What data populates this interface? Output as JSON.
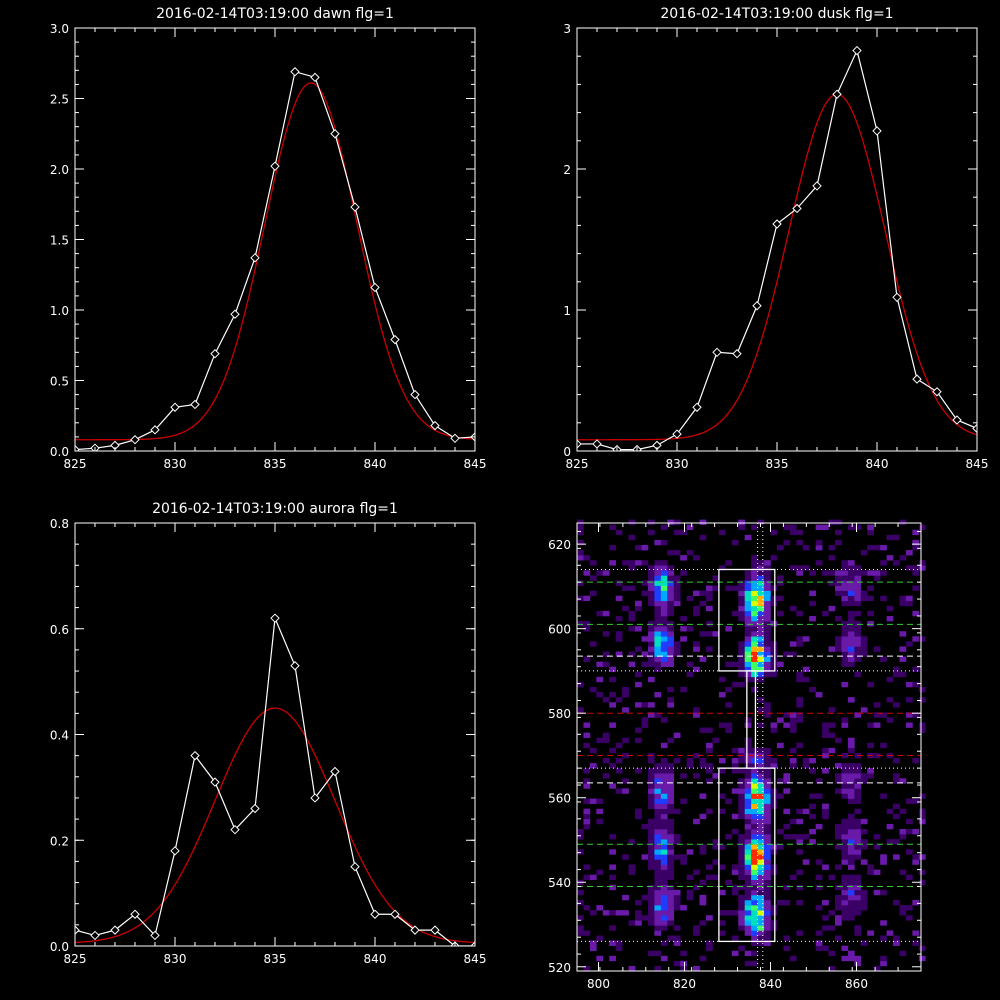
{
  "chart_data": [
    {
      "id": "dawn",
      "type": "line",
      "title": "2016-02-14T03:19:00 dawn flg=1",
      "xlim": [
        825,
        845
      ],
      "ylim": [
        0,
        3.0
      ],
      "xticks": [
        825,
        830,
        835,
        840,
        845
      ],
      "xtick_labels": [
        "825",
        "830",
        "835",
        "840",
        "845"
      ],
      "yticks": [
        0,
        0.5,
        1.0,
        1.5,
        2.0,
        2.5,
        3.0
      ],
      "ytick_labels": [
        "0.0",
        "0.5",
        "1.0",
        "1.5",
        "2.0",
        "2.5",
        "3.0"
      ],
      "series": [
        {
          "kind": "data",
          "color": "#ffffff",
          "marker": "diamond",
          "x": [
            825,
            826,
            827,
            828,
            829,
            830,
            831,
            832,
            833,
            834,
            835,
            836,
            837,
            838,
            839,
            840,
            841,
            842,
            843,
            844,
            845
          ],
          "y": [
            0.01,
            0.02,
            0.04,
            0.08,
            0.15,
            0.31,
            0.33,
            0.69,
            0.97,
            1.37,
            2.02,
            2.69,
            2.65,
            2.25,
            1.73,
            1.16,
            0.79,
            0.4,
            0.18,
            0.09,
            0.1
          ]
        },
        {
          "kind": "gaussian_fit",
          "color": "#cc0000",
          "amp": 2.53,
          "center": 836.8,
          "sigma": 2.3,
          "offset": 0.08
        }
      ]
    },
    {
      "id": "dusk",
      "type": "line",
      "title": "2016-02-14T03:19:00 dusk flg=1",
      "xlim": [
        825,
        845
      ],
      "ylim": [
        0,
        3
      ],
      "xticks": [
        825,
        830,
        835,
        840,
        845
      ],
      "xtick_labels": [
        "825",
        "830",
        "835",
        "840",
        "845"
      ],
      "yticks": [
        0,
        1,
        2,
        3
      ],
      "ytick_labels": [
        "0",
        "1",
        "2",
        "3"
      ],
      "series": [
        {
          "kind": "data",
          "color": "#ffffff",
          "marker": "diamond",
          "x": [
            825,
            826,
            827,
            828,
            829,
            830,
            831,
            832,
            833,
            834,
            835,
            836,
            837,
            838,
            839,
            840,
            841,
            842,
            843,
            844,
            845
          ],
          "y": [
            0.05,
            0.05,
            0.01,
            0.01,
            0.04,
            0.12,
            0.31,
            0.7,
            0.69,
            1.03,
            1.61,
            1.72,
            1.88,
            2.53,
            2.84,
            2.27,
            1.09,
            0.51,
            0.42,
            0.22,
            0.16
          ]
        },
        {
          "kind": "gaussian_fit",
          "color": "#cc0000",
          "amp": 2.45,
          "center": 838.0,
          "sigma": 2.4,
          "offset": 0.08
        }
      ]
    },
    {
      "id": "aurora",
      "type": "line",
      "title": "2016-02-14T03:19:00 aurora flg=1",
      "xlim": [
        825,
        845
      ],
      "ylim": [
        0,
        0.8
      ],
      "xticks": [
        825,
        830,
        835,
        840,
        845
      ],
      "xtick_labels": [
        "825",
        "830",
        "835",
        "840",
        "845"
      ],
      "yticks": [
        0,
        0.2,
        0.4,
        0.6,
        0.8
      ],
      "ytick_labels": [
        "0.0",
        "0.2",
        "0.4",
        "0.6",
        "0.8"
      ],
      "series": [
        {
          "kind": "data",
          "color": "#ffffff",
          "marker": "diamond",
          "x": [
            825,
            826,
            827,
            828,
            829,
            830,
            831,
            832,
            833,
            834,
            835,
            836,
            837,
            838,
            839,
            840,
            841,
            842,
            843,
            844,
            845
          ],
          "y": [
            0.03,
            0.02,
            0.03,
            0.06,
            0.02,
            0.18,
            0.36,
            0.31,
            0.22,
            0.26,
            0.62,
            0.53,
            0.28,
            0.33,
            0.15,
            0.06,
            0.06,
            0.03,
            0.03,
            0.0,
            0.0
          ]
        },
        {
          "kind": "gaussian_fit",
          "color": "#cc0000",
          "amp": 0.445,
          "center": 835.0,
          "sigma": 3.0,
          "offset": 0.005
        }
      ]
    },
    {
      "id": "image",
      "type": "heatmap",
      "title": "",
      "xlim": [
        795,
        875
      ],
      "ylim": [
        519,
        625
      ],
      "xticks": [
        800,
        820,
        840,
        860
      ],
      "xtick_labels": [
        "800",
        "820",
        "840",
        "860"
      ],
      "yticks": [
        520,
        540,
        560,
        580,
        600,
        620
      ],
      "ytick_labels": [
        "520",
        "540",
        "560",
        "580",
        "600",
        "620"
      ],
      "colormap": [
        "#000000",
        "#3a0066",
        "#6a1aa8",
        "#1f3cff",
        "#00a8ff",
        "#00e0c0",
        "#40ff60",
        "#d8ff00",
        "#ffb000",
        "#ff2a00"
      ],
      "bands": [
        {
          "x": 814,
          "y0": 592,
          "y1": 614,
          "peak": 0.55
        },
        {
          "x": 814,
          "y0": 530,
          "y1": 568,
          "peak": 0.45
        },
        {
          "x": 836,
          "y0": 589,
          "y1": 613,
          "peak": 1.0
        },
        {
          "x": 836,
          "y0": 528,
          "y1": 568,
          "peak": 0.95
        },
        {
          "x": 858,
          "y0": 592,
          "y1": 614,
          "peak": 0.3
        },
        {
          "x": 858,
          "y0": 532,
          "y1": 566,
          "peak": 0.28
        }
      ],
      "boxes": [
        {
          "x0": 828,
          "x1": 841,
          "y0": 590,
          "y1": 614
        },
        {
          "x0": 828,
          "x1": 841,
          "y0": 526,
          "y1": 567
        },
        {
          "x0": 834.5,
          "x1": 836.5,
          "y0": 567,
          "y1": 590
        }
      ],
      "hlines": [
        {
          "y": 611,
          "color": "#33cc33",
          "style": "dashed"
        },
        {
          "y": 601,
          "color": "#33cc33",
          "style": "dashed"
        },
        {
          "y": 549,
          "color": "#33cc33",
          "style": "dashed"
        },
        {
          "y": 539,
          "color": "#33cc33",
          "style": "dashed"
        },
        {
          "y": 593.5,
          "color": "#ffffff",
          "style": "dashed"
        },
        {
          "y": 563.5,
          "color": "#ffffff",
          "style": "dashed"
        },
        {
          "y": 580,
          "color": "#cc0000",
          "style": "dashed"
        },
        {
          "y": 570,
          "color": "#cc0000",
          "style": "dashed"
        },
        {
          "y": 614,
          "color": "#ffffff",
          "style": "dotted"
        },
        {
          "y": 590,
          "color": "#ffffff",
          "style": "dotted"
        },
        {
          "y": 567,
          "color": "#ffffff",
          "style": "dotted"
        },
        {
          "y": 526,
          "color": "#ffffff",
          "style": "dotted"
        }
      ],
      "vlines": [
        {
          "x": 837,
          "color": "#ffffff",
          "style": "dotted"
        },
        {
          "x": 838.2,
          "color": "#ffffff",
          "style": "dotted"
        }
      ]
    }
  ]
}
